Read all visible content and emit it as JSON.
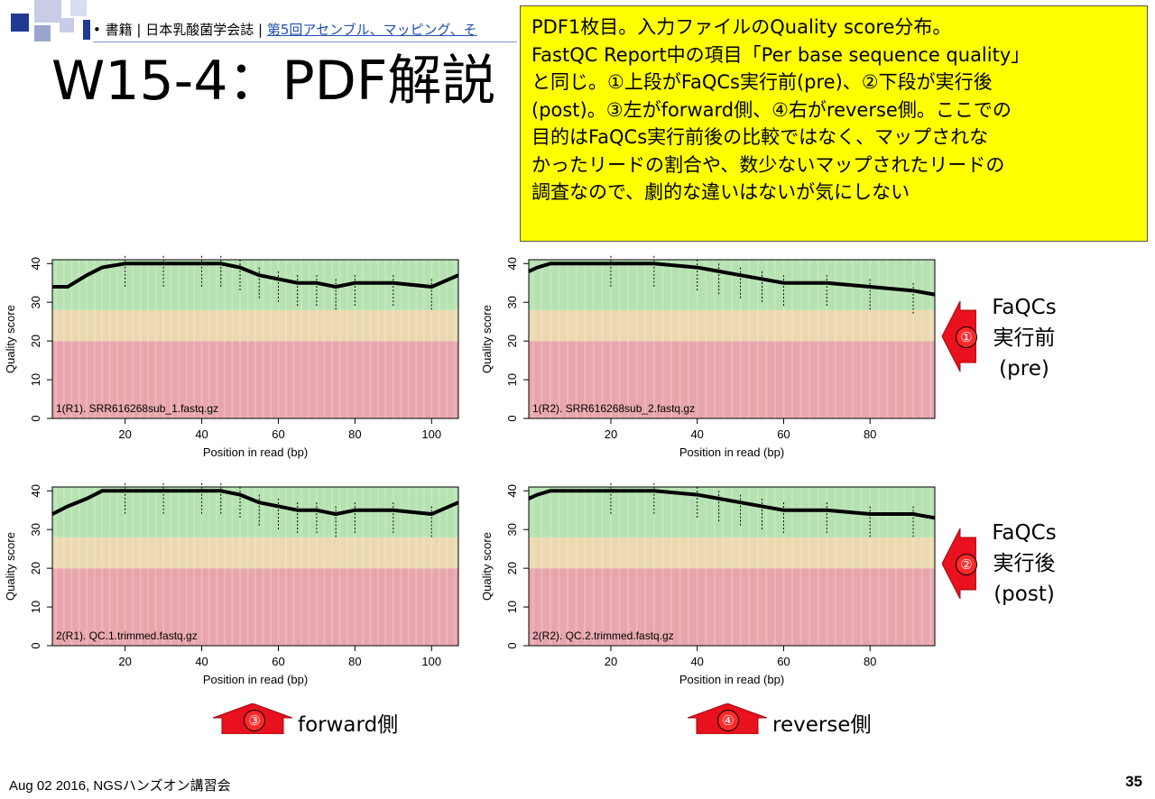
{
  "breadcrumb": {
    "bullet": "•",
    "text": "書籍 | 日本乳酸菌学会誌 | ",
    "link": "第5回アセンブル、マッピング、そ"
  },
  "title": "W15-4：PDF解説",
  "note_lines": [
    "PDF1枚目。入力ファイルのQuality score分布。",
    "FastQC Report中の項目「Per base sequence quality」",
    "と同じ。①上段がFaQCs実行前(pre)、②下段が実行後",
    "(post)。③左がforward側、④右がreverse側。ここでの",
    "目的はFaQCs実行前後の比較ではなく、マップされな",
    "かったリードの割合や、数少ないマップされたリードの",
    "調査なので、劇的な違いはないが気にしない"
  ],
  "plots": [
    {
      "label": "1(R1). SRR616268sub_1.fastq.gz",
      "xlabel": "Position in read (bp)",
      "ylabel": "Quality score",
      "xticks": [
        "20",
        "40",
        "60",
        "80",
        "100"
      ],
      "yticks": [
        "0",
        "10",
        "20",
        "30",
        "40"
      ]
    },
    {
      "label": "1(R2). SRR616268sub_2.fastq.gz",
      "xlabel": "Position in read (bp)",
      "ylabel": "Quality score",
      "xticks": [
        "20",
        "40",
        "60",
        "80"
      ],
      "yticks": [
        "0",
        "10",
        "20",
        "30",
        "40"
      ]
    },
    {
      "label": "2(R1). QC.1.trimmed.fastq.gz",
      "xlabel": "Position in read (bp)",
      "ylabel": "Quality score",
      "xticks": [
        "20",
        "40",
        "60",
        "80",
        "100"
      ],
      "yticks": [
        "0",
        "10",
        "20",
        "30",
        "40"
      ]
    },
    {
      "label": "2(R2). QC.2.trimmed.fastq.gz",
      "xlabel": "Position in read (bp)",
      "ylabel": "Quality score",
      "xticks": [
        "20",
        "40",
        "60",
        "80"
      ],
      "yticks": [
        "0",
        "10",
        "20",
        "30",
        "40"
      ]
    }
  ],
  "chart_data": [
    {
      "type": "box",
      "title": "1(R1). SRR616268sub_1.fastq.gz",
      "xlabel": "Position in read (bp)",
      "ylabel": "Quality score",
      "xlim": [
        1,
        107
      ],
      "ylim": [
        0,
        41
      ],
      "bands": {
        "red": [
          0,
          20
        ],
        "orange": [
          20,
          28
        ],
        "green": [
          28,
          41
        ]
      },
      "median_line": {
        "x": [
          1,
          5,
          10,
          14,
          20,
          30,
          40,
          45,
          50,
          55,
          60,
          65,
          70,
          75,
          80,
          90,
          100,
          107
        ],
        "y": [
          34,
          34,
          37,
          39,
          40,
          40,
          40,
          40,
          39,
          37,
          36,
          35,
          35,
          34,
          35,
          35,
          34,
          37
        ]
      }
    },
    {
      "type": "box",
      "title": "1(R2). SRR616268sub_2.fastq.gz",
      "xlabel": "Position in read (bp)",
      "ylabel": "Quality score",
      "xlim": [
        1,
        95
      ],
      "ylim": [
        0,
        41
      ],
      "bands": {
        "red": [
          0,
          20
        ],
        "orange": [
          20,
          28
        ],
        "green": [
          28,
          41
        ]
      },
      "median_line": {
        "x": [
          1,
          3,
          6,
          10,
          20,
          30,
          40,
          45,
          50,
          55,
          60,
          70,
          80,
          90,
          95
        ],
        "y": [
          38,
          39,
          40,
          40,
          40,
          40,
          39,
          38,
          37,
          36,
          35,
          35,
          34,
          33,
          32
        ]
      }
    },
    {
      "type": "box",
      "title": "2(R1). QC.1.trimmed.fastq.gz",
      "xlabel": "Position in read (bp)",
      "ylabel": "Quality score",
      "xlim": [
        1,
        107
      ],
      "ylim": [
        0,
        41
      ],
      "bands": {
        "red": [
          0,
          20
        ],
        "orange": [
          20,
          28
        ],
        "green": [
          28,
          41
        ]
      },
      "median_line": {
        "x": [
          1,
          5,
          10,
          14,
          20,
          30,
          40,
          45,
          50,
          55,
          60,
          65,
          70,
          75,
          80,
          90,
          100,
          107
        ],
        "y": [
          34,
          36,
          38,
          40,
          40,
          40,
          40,
          40,
          39,
          37,
          36,
          35,
          35,
          34,
          35,
          35,
          34,
          37
        ]
      }
    },
    {
      "type": "box",
      "title": "2(R2). QC.2.trimmed.fastq.gz",
      "xlabel": "Position in read (bp)",
      "ylabel": "Quality score",
      "xlim": [
        1,
        95
      ],
      "ylim": [
        0,
        41
      ],
      "bands": {
        "red": [
          0,
          20
        ],
        "orange": [
          20,
          28
        ],
        "green": [
          28,
          41
        ]
      },
      "median_line": {
        "x": [
          1,
          3,
          6,
          10,
          20,
          30,
          40,
          45,
          50,
          55,
          60,
          70,
          80,
          90,
          95
        ],
        "y": [
          38,
          39,
          40,
          40,
          40,
          40,
          39,
          38,
          37,
          36,
          35,
          35,
          34,
          34,
          33
        ]
      }
    }
  ],
  "side_labels": [
    {
      "num": "①",
      "lines": [
        "FaQCs",
        "実行前",
        "(pre)"
      ]
    },
    {
      "num": "②",
      "lines": [
        "FaQCs",
        "実行後",
        "(post)"
      ]
    }
  ],
  "bottom_labels": [
    {
      "num": "③",
      "text": "forward側"
    },
    {
      "num": "④",
      "text": "reverse側"
    }
  ],
  "footer": "Aug 02 2016, NGSハンズオン講習会",
  "page_number": "35",
  "colors": {
    "note_bg": "#ffff00",
    "band_red": "#e8a6ac",
    "band_orange": "#ecd9b0",
    "band_green": "#b6e2b2",
    "arrow_red": "#e8111d",
    "accent_blue": "#1f3a93"
  }
}
